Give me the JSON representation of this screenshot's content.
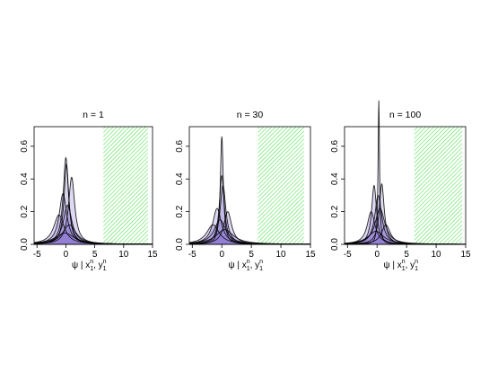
{
  "figure": {
    "colors": {
      "density_fill": "#d9d6ec",
      "density_fill_dark": "#8a72d2",
      "density_line": "#000000",
      "hatch": "#47e047",
      "axis": "#000000"
    },
    "xlabel_main": "ψ | x",
    "xlabel_sub": "1",
    "xlabel_sup": "n",
    "xlabel_sep": ", y",
    "xlabel_sub2": "1",
    "xlabel_sup2": "n"
  },
  "chart_data": [
    {
      "type": "area",
      "title": "n = 1",
      "xlim": [
        -5.5,
        15
      ],
      "ylim": [
        0,
        0.72
      ],
      "x_ticks": [
        -5,
        0,
        5,
        10,
        15
      ],
      "y_ticks": [
        0.0,
        0.2,
        0.4,
        0.6
      ],
      "x_tick_labels": [
        "-5",
        "0",
        "5",
        "10",
        "15"
      ],
      "y_tick_labels": [
        "0.0",
        "0.2",
        "0.4",
        "0.6"
      ],
      "hatched_region": [
        6.5,
        14.2
      ],
      "densities": [
        {
          "mu": 0.0,
          "sd": 0.55,
          "peak": 0.53
        },
        {
          "mu": 0.1,
          "sd": 0.5,
          "peak": 0.49
        },
        {
          "mu": 1.0,
          "sd": 0.65,
          "peak": 0.41
        },
        {
          "mu": -0.5,
          "sd": 0.8,
          "peak": 0.31
        },
        {
          "mu": 0.3,
          "sd": 0.9,
          "peak": 0.24
        },
        {
          "mu": -1.2,
          "sd": 1.1,
          "peak": 0.18
        },
        {
          "mu": 0.6,
          "sd": 1.4,
          "peak": 0.12
        },
        {
          "mu": -0.2,
          "sd": 2.0,
          "peak": 0.07
        }
      ]
    },
    {
      "type": "area",
      "title": "n = 30",
      "xlim": [
        -5.5,
        15
      ],
      "ylim": [
        0,
        0.72
      ],
      "x_ticks": [
        -5,
        0,
        5,
        10,
        15
      ],
      "y_ticks": [
        0.0,
        0.2,
        0.4,
        0.6
      ],
      "x_tick_labels": [
        "-5",
        "0",
        "5",
        "10",
        "15"
      ],
      "y_tick_labels": [
        "0.0",
        "0.2",
        "0.4",
        "0.6"
      ],
      "hatched_region": [
        6.1,
        13.9
      ],
      "densities": [
        {
          "mu": 0.0,
          "sd": 0.3,
          "peak": 0.66
        },
        {
          "mu": 0.0,
          "sd": 0.5,
          "peak": 0.42
        },
        {
          "mu": 0.2,
          "sd": 0.6,
          "peak": 0.36
        },
        {
          "mu": -0.8,
          "sd": 0.9,
          "peak": 0.22
        },
        {
          "mu": 1.0,
          "sd": 0.8,
          "peak": 0.2
        },
        {
          "mu": -0.3,
          "sd": 1.2,
          "peak": 0.15
        },
        {
          "mu": 0.5,
          "sd": 1.8,
          "peak": 0.09
        },
        {
          "mu": -1.5,
          "sd": 1.3,
          "peak": 0.12
        }
      ]
    },
    {
      "type": "area",
      "title": "n = 100",
      "xlim": [
        -5.5,
        15
      ],
      "ylim": [
        0,
        0.72
      ],
      "x_ticks": [
        -5,
        0,
        5,
        10,
        15
      ],
      "y_ticks": [
        0.0,
        0.2,
        0.4,
        0.6
      ],
      "x_tick_labels": [
        "-5",
        "0",
        "5",
        "10",
        "15"
      ],
      "y_tick_labels": [
        "0.0",
        "0.2",
        "0.4",
        "0.6"
      ],
      "hatched_region": [
        6.3,
        14.4
      ],
      "densities": [
        {
          "mu": 0.3,
          "sd": 0.15,
          "peak": 0.88
        },
        {
          "mu": -0.5,
          "sd": 0.5,
          "peak": 0.36
        },
        {
          "mu": 0.8,
          "sd": 0.5,
          "peak": 0.37
        },
        {
          "mu": 0.2,
          "sd": 0.7,
          "peak": 0.3
        },
        {
          "mu": -1.0,
          "sd": 0.8,
          "peak": 0.2
        },
        {
          "mu": 0.5,
          "sd": 1.0,
          "peak": 0.22
        },
        {
          "mu": 1.5,
          "sd": 0.9,
          "peak": 0.12
        },
        {
          "mu": -0.2,
          "sd": 1.6,
          "peak": 0.08
        }
      ]
    }
  ]
}
